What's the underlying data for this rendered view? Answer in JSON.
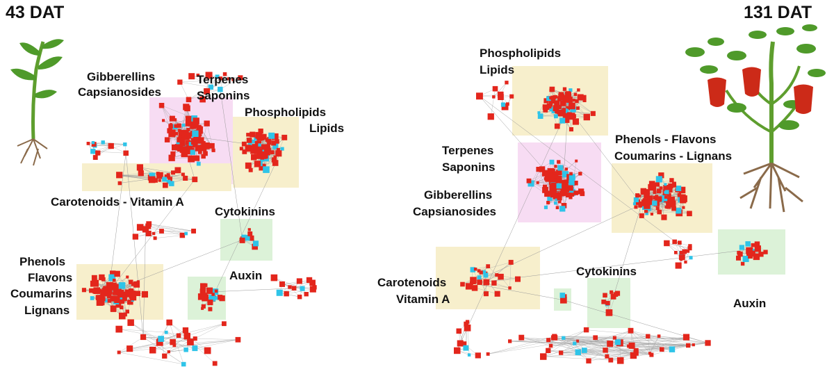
{
  "panels": [
    {
      "id": "left",
      "title": "43 DAT",
      "clusters": [
        {
          "label_lines": [
            "Gibberellins",
            "Capsianosides"
          ]
        },
        {
          "label_lines": [
            "Terpenes",
            "Saponins"
          ]
        },
        {
          "label_lines": [
            "Phospholipids",
            "Lipids"
          ]
        },
        {
          "label_lines": [
            "Carotenoids - Vitamin A"
          ]
        },
        {
          "label_lines": [
            "Cytokinins"
          ]
        },
        {
          "label_lines": [
            "Phenols",
            "Flavons",
            "Coumarins",
            "Lignans"
          ]
        },
        {
          "label_lines": [
            "Auxin"
          ]
        }
      ]
    },
    {
      "id": "right",
      "title": "131 DAT",
      "clusters": [
        {
          "label_lines": [
            "Phospholipids",
            "Lipids"
          ]
        },
        {
          "label_lines": [
            "Phenols - Flavons",
            "Coumarins -  Lignans"
          ]
        },
        {
          "label_lines": [
            "Terpenes",
            "Saponins"
          ]
        },
        {
          "label_lines": [
            "Gibberellins",
            "Capsianosides"
          ]
        },
        {
          "label_lines": [
            "Carotenoids",
            "Vitamin A"
          ]
        },
        {
          "label_lines": [
            "Cytokinins"
          ]
        },
        {
          "label_lines": [
            "Auxin"
          ]
        }
      ]
    }
  ],
  "colors": {
    "node_primary": "#e3261c",
    "node_secondary": "#2fc4e8",
    "edge": "#9a9a9a",
    "highlight_pink": "#f7dcf3",
    "highlight_yellow": "#f7efcc",
    "highlight_green": "#dcf2d8",
    "highlight_blue": "#d8eef7",
    "stem": "#5e9e2e",
    "leaf": "#4f9a2a",
    "root": "#8a6a4a",
    "pepper": "#cc2a18"
  }
}
